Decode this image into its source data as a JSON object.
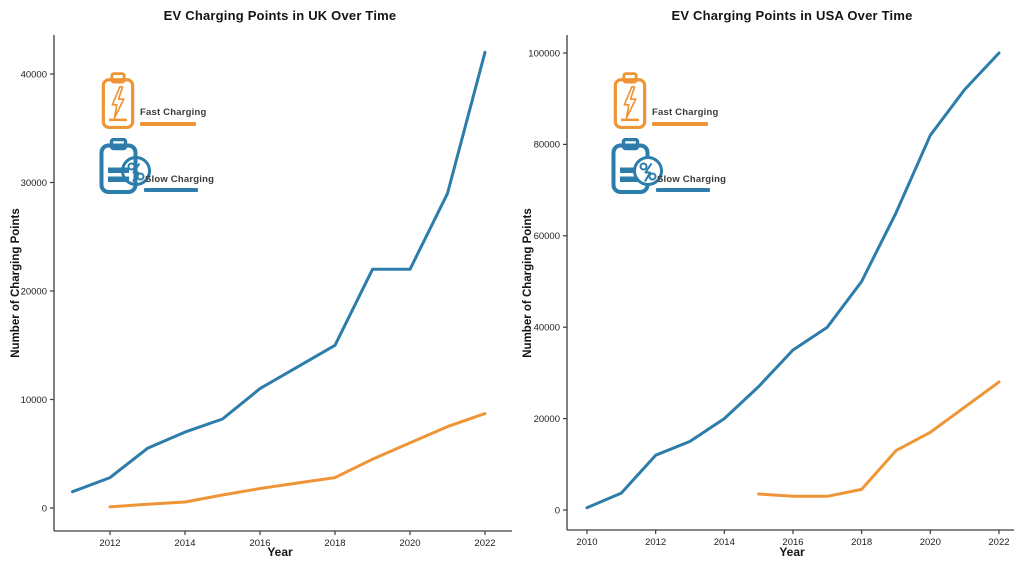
{
  "figure": {
    "background": "#ffffff",
    "accent_orange": "#ee9637",
    "accent_blue": "#2d7dab",
    "text_color": "#141414"
  },
  "legend": {
    "fast_label": "Fast Charging",
    "slow_label": "Slow Charging",
    "fast_icon": "battery-lightning-icon",
    "slow_icon": "battery-percent-icon"
  },
  "chart_data": [
    {
      "type": "line",
      "title": "EV Charging Points in UK Over Time",
      "xlabel": "Year",
      "ylabel": "Number of Charging Points",
      "xticks": [
        2012,
        2014,
        2016,
        2018,
        2020,
        2022
      ],
      "yticks": [
        0,
        10000,
        20000,
        30000,
        40000
      ],
      "xlim": [
        2010.5,
        2023.2
      ],
      "ylim": [
        0,
        44000
      ],
      "grid": false,
      "legend_position": "upper-left",
      "series": [
        {
          "name": "Fast Charging",
          "color": "#ee9637",
          "x": [
            2012,
            2013,
            2014,
            2015,
            2016,
            2017,
            2018,
            2019,
            2020,
            2021,
            2022
          ],
          "values": [
            100,
            350,
            550,
            1200,
            1800,
            2300,
            2800,
            4500,
            6000,
            7500,
            8700
          ]
        },
        {
          "name": "Slow Charging",
          "color": "#2d7dab",
          "x": [
            2011,
            2012,
            2013,
            2014,
            2015,
            2016,
            2017,
            2018,
            2019,
            2020,
            2021,
            2022
          ],
          "values": [
            1500,
            2800,
            5500,
            7000,
            8200,
            11000,
            13000,
            15000,
            22000,
            22000,
            29000,
            42000
          ]
        }
      ]
    },
    {
      "type": "line",
      "title": "EV Charging Points in USA Over Time",
      "xlabel": "Year",
      "ylabel": "Number of Charging Points",
      "xticks": [
        2010,
        2012,
        2014,
        2016,
        2018,
        2020,
        2022
      ],
      "yticks": [
        0,
        20000,
        40000,
        60000,
        80000,
        100000
      ],
      "xlim": [
        2009.4,
        2022.8
      ],
      "ylim": [
        0,
        104000
      ],
      "grid": false,
      "legend_position": "upper-left",
      "series": [
        {
          "name": "Fast Charging",
          "color": "#ee9637",
          "x": [
            2015,
            2016,
            2017,
            2018,
            2019,
            2020,
            2021,
            2022
          ],
          "values": [
            3500,
            3000,
            3000,
            4500,
            13000,
            17000,
            22500,
            28000
          ]
        },
        {
          "name": "Slow Charging",
          "color": "#2d7dab",
          "x": [
            2010,
            2011,
            2012,
            2013,
            2014,
            2015,
            2016,
            2017,
            2018,
            2019,
            2020,
            2021,
            2022
          ],
          "values": [
            500,
            3700,
            12000,
            15000,
            20000,
            27000,
            35000,
            40000,
            50000,
            65000,
            82000,
            92000,
            100000
          ]
        }
      ]
    }
  ]
}
